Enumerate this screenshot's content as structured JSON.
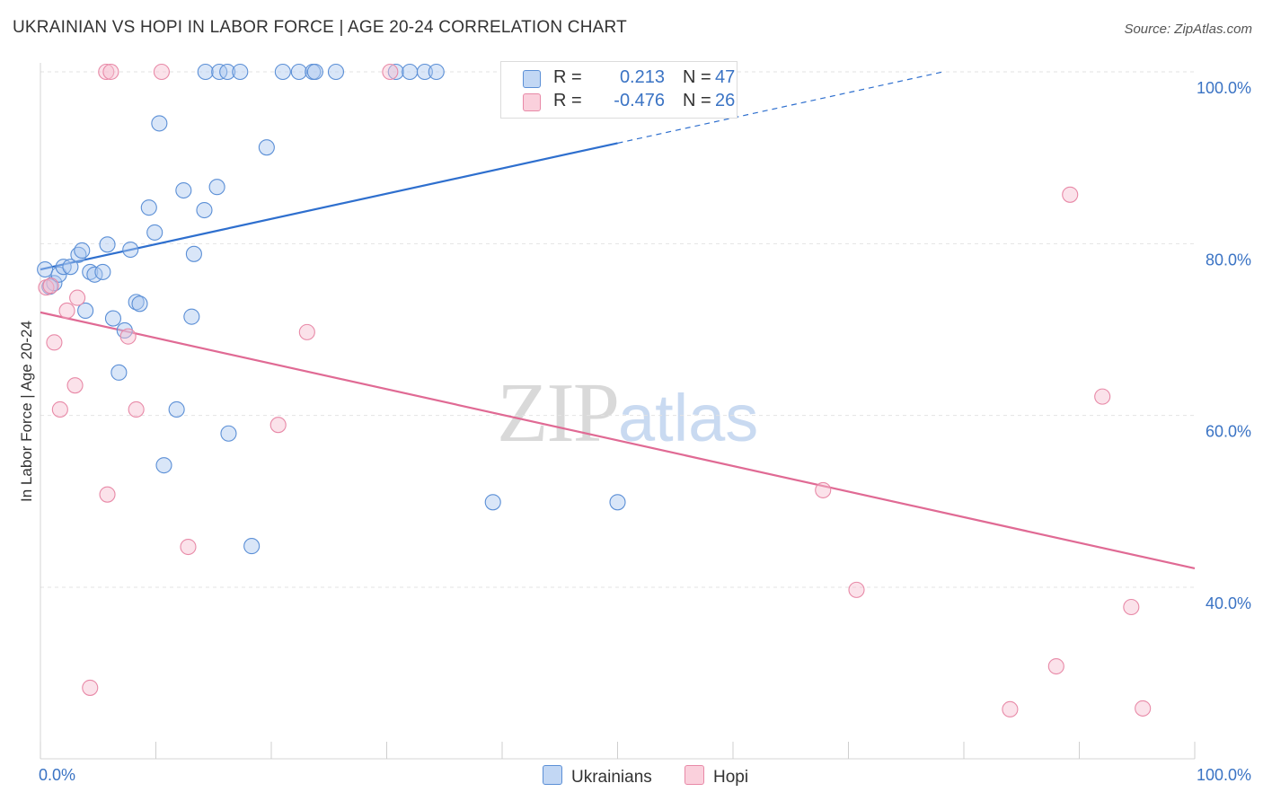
{
  "header": {
    "title": "UKRAINIAN VS HOPI IN LABOR FORCE | AGE 20-24 CORRELATION CHART",
    "source": "Source: ZipAtlas.com"
  },
  "watermark": {
    "zip": "ZIP",
    "atlas": "atlas"
  },
  "colors": {
    "ukrainians_fill": "#aac8f0",
    "ukrainians_stroke": "#5b8fd6",
    "ukrainians_line": "#2e6fce",
    "hopi_fill": "#f7bfd0",
    "hopi_stroke": "#e889a7",
    "hopi_line": "#e06a94",
    "tick_label": "#3a73c4",
    "grid": "#e3e3e3"
  },
  "legend": {
    "rows": [
      {
        "series": "Ukrainians",
        "r_label": "R =",
        "r_value": "0.213",
        "n_label": "N =",
        "n_value": "47"
      },
      {
        "series": "Hopi",
        "r_label": "R =",
        "r_value": "-0.476",
        "n_label": "N =",
        "n_value": "26"
      }
    ]
  },
  "bottom_legend": {
    "ukrainians": "Ukrainians",
    "hopi": "Hopi"
  },
  "chart_data": {
    "type": "scatter",
    "title": "UKRAINIAN VS HOPI IN LABOR FORCE | AGE 20-24 CORRELATION CHART",
    "xlabel": "",
    "ylabel": "In Labor Force | Age 20-24",
    "xlim": [
      0,
      100
    ],
    "ylim": [
      22,
      102
    ],
    "x_tick_labels": [
      {
        "value": 0,
        "label": "0.0%"
      },
      {
        "value": 100,
        "label": "100.0%"
      }
    ],
    "y_tick_labels": [
      {
        "value": 100,
        "label": "100.0%"
      },
      {
        "value": 80,
        "label": "80.0%"
      },
      {
        "value": 60,
        "label": "60.0%"
      },
      {
        "value": 40,
        "label": "40.0%"
      }
    ],
    "grid": true,
    "series": [
      {
        "name": "Ukrainians",
        "points": [
          [
            0.4,
            77.0
          ],
          [
            0.8,
            75.0
          ],
          [
            1.2,
            75.4
          ],
          [
            1.6,
            76.4
          ],
          [
            2.0,
            77.3
          ],
          [
            2.6,
            77.3
          ],
          [
            3.3,
            78.7
          ],
          [
            3.6,
            79.2
          ],
          [
            3.9,
            72.2
          ],
          [
            4.3,
            76.7
          ],
          [
            4.7,
            76.4
          ],
          [
            5.4,
            76.7
          ],
          [
            5.8,
            79.9
          ],
          [
            6.3,
            71.3
          ],
          [
            6.8,
            65.0
          ],
          [
            7.3,
            69.9
          ],
          [
            7.8,
            79.3
          ],
          [
            8.3,
            73.2
          ],
          [
            8.6,
            73.0
          ],
          [
            9.4,
            84.2
          ],
          [
            9.9,
            81.3
          ],
          [
            10.3,
            94.0
          ],
          [
            10.7,
            54.2
          ],
          [
            11.8,
            60.7
          ],
          [
            12.4,
            86.2
          ],
          [
            13.1,
            71.5
          ],
          [
            13.3,
            78.8
          ],
          [
            14.2,
            83.9
          ],
          [
            14.3,
            100.0
          ],
          [
            15.3,
            86.6
          ],
          [
            15.5,
            100.0
          ],
          [
            16.2,
            100.0
          ],
          [
            16.3,
            57.9
          ],
          [
            17.3,
            100.0
          ],
          [
            18.3,
            44.8
          ],
          [
            19.6,
            91.2
          ],
          [
            21.0,
            100.0
          ],
          [
            22.4,
            100.0
          ],
          [
            23.6,
            100.0
          ],
          [
            23.8,
            100.0
          ],
          [
            25.6,
            100.0
          ],
          [
            30.8,
            100.0
          ],
          [
            32.0,
            100.0
          ],
          [
            33.3,
            100.0
          ],
          [
            34.3,
            100.0
          ],
          [
            39.2,
            49.9
          ],
          [
            50.0,
            49.9
          ]
        ]
      },
      {
        "name": "Hopi",
        "points": [
          [
            0.5,
            74.9
          ],
          [
            0.9,
            75.1
          ],
          [
            1.2,
            68.5
          ],
          [
            1.7,
            60.7
          ],
          [
            2.3,
            72.2
          ],
          [
            3.0,
            63.5
          ],
          [
            3.2,
            73.7
          ],
          [
            4.3,
            28.3
          ],
          [
            5.8,
            50.8
          ],
          [
            5.7,
            100.0
          ],
          [
            6.1,
            100.0
          ],
          [
            7.6,
            69.2
          ],
          [
            8.3,
            60.7
          ],
          [
            10.5,
            100.0
          ],
          [
            12.8,
            44.7
          ],
          [
            20.6,
            58.9
          ],
          [
            23.1,
            69.7
          ],
          [
            30.3,
            100.0
          ],
          [
            67.8,
            51.3
          ],
          [
            70.7,
            39.7
          ],
          [
            88.0,
            30.8
          ],
          [
            89.2,
            85.7
          ],
          [
            84.0,
            25.8
          ],
          [
            92.0,
            62.2
          ],
          [
            94.5,
            37.7
          ],
          [
            95.5,
            25.9
          ]
        ]
      }
    ],
    "trendlines": [
      {
        "series": "Ukrainians",
        "from": [
          0,
          77.0
        ],
        "to": [
          50,
          91.7
        ],
        "dashed_to": [
          78.2,
          100.0
        ]
      },
      {
        "series": "Hopi",
        "from": [
          0,
          72.0
        ],
        "to": [
          100,
          42.2
        ]
      }
    ]
  }
}
